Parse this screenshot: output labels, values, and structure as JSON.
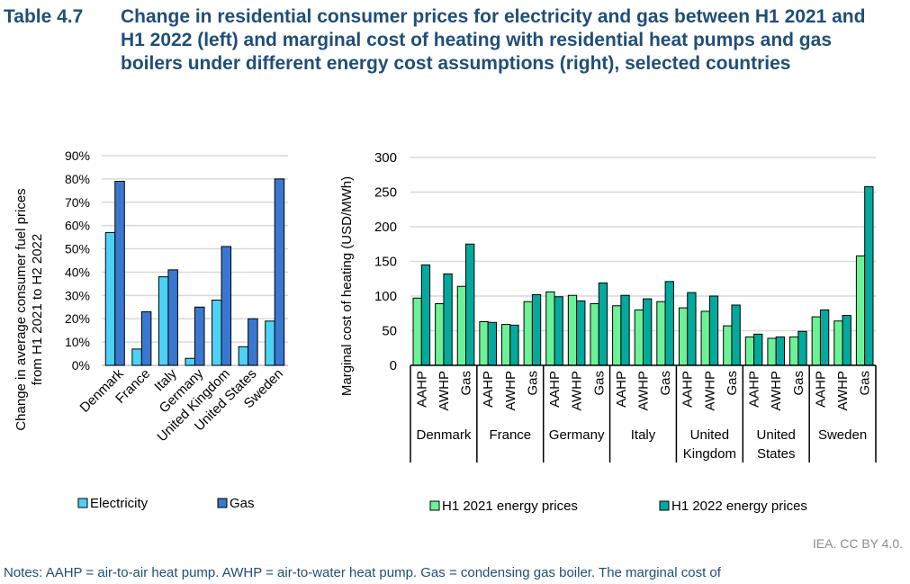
{
  "header": {
    "table_number": "Table 4.7",
    "title": "Change in residential consumer prices for electricity and gas between H1 2021 and H1 2022 (left) and marginal cost of heating with residential heat pumps and gas boilers under different energy cost assumptions (right), selected countries"
  },
  "colors": {
    "electricity": "#4dd2f7",
    "gas": "#3a78d0",
    "h1_2021": "#6cf296",
    "h1_2022": "#03a99d",
    "title": "#1f4e79",
    "grid": "#d9d9d9"
  },
  "chart_data": [
    {
      "type": "bar",
      "title": "",
      "xlabel": "",
      "ylabel": "Change in average consumer fuel prices from H1 2021 to H2 2022",
      "ylim": [
        0,
        90
      ],
      "y_unit": "%",
      "yticks": [
        "0%",
        "10%",
        "20%",
        "30%",
        "40%",
        "50%",
        "60%",
        "70%",
        "80%",
        "90%"
      ],
      "categories": [
        "Denmark",
        "France",
        "Italy",
        "Germany",
        "United Kingdom",
        "United States",
        "Sweden"
      ],
      "series": [
        {
          "name": "Electricity",
          "values": [
            57,
            7,
            38,
            3,
            28,
            8,
            19
          ]
        },
        {
          "name": "Gas",
          "values": [
            79,
            23,
            41,
            25,
            51,
            20,
            80
          ]
        }
      ],
      "grid": true,
      "legend": "bottom"
    },
    {
      "type": "bar",
      "title": "",
      "xlabel": "",
      "ylabel": "Marginal cost of heating (USD/MWh)",
      "ylim": [
        0,
        300
      ],
      "yticks": [
        "0",
        "50",
        "100",
        "150",
        "200",
        "250",
        "300"
      ],
      "groups": [
        "Denmark",
        "France",
        "Germany",
        "Italy",
        "United Kingdom",
        "United States",
        "Sweden"
      ],
      "group_label_lines": [
        [
          "Denmark"
        ],
        [
          "France"
        ],
        [
          "Germany"
        ],
        [
          "Italy"
        ],
        [
          "United",
          "Kingdom"
        ],
        [
          "United",
          "States"
        ],
        [
          "Sweden"
        ]
      ],
      "subcategories": [
        "AAHP",
        "AWHP",
        "Gas"
      ],
      "series": [
        {
          "name": "H1 2021 energy prices",
          "values": [
            [
              97,
              89,
              114
            ],
            [
              63,
              59,
              92
            ],
            [
              106,
              101,
              89
            ],
            [
              86,
              80,
              92
            ],
            [
              83,
              78,
              57
            ],
            [
              41,
              39,
              41
            ],
            [
              70,
              64,
              158
            ]
          ]
        },
        {
          "name": "H1 2022 energy prices",
          "values": [
            [
              145,
              132,
              175
            ],
            [
              62,
              58,
              102
            ],
            [
              99,
              93,
              119
            ],
            [
              101,
              96,
              121
            ],
            [
              105,
              100,
              87
            ],
            [
              45,
              41,
              49
            ],
            [
              80,
              72,
              258
            ]
          ]
        }
      ],
      "grid": true,
      "legend": "bottom"
    }
  ],
  "footer": {
    "credit": "IEA. CC BY 4.0.",
    "notes": "Notes: AAHP = air-to-air heat pump. AWHP = air-to-water heat pump. Gas = condensing gas boiler. The marginal cost of"
  }
}
